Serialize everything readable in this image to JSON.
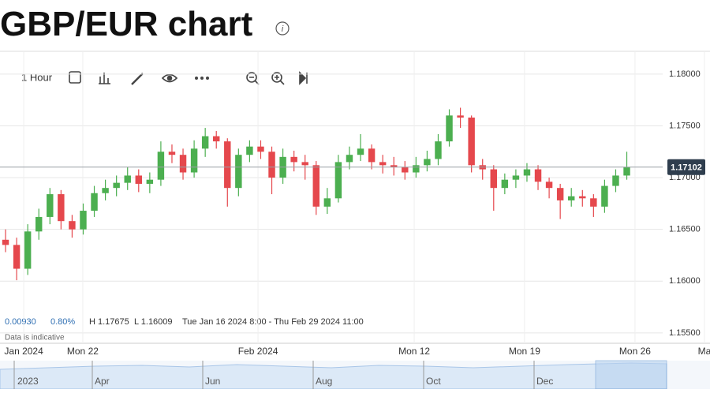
{
  "chart_data": {
    "type": "candlestick",
    "title": "GBP/EUR chart",
    "interval": "1 Hour",
    "stats": {
      "change": "0.00930",
      "change_pct": "0.80%",
      "high": "H 1.17675",
      "low": "L 1.16009",
      "range": "Tue Jan 16 2024 8:00 - Thu Feb 29 2024 11:00"
    },
    "note": "Data is indicative",
    "last_price": 1.17102,
    "up_color": "#4caf50",
    "down_color": "#e5484d",
    "grid": true,
    "xlim": [
      0,
      32
    ],
    "xticks": [
      {
        "value": 1.07,
        "label": "Jan 2024"
      },
      {
        "value": 3.73,
        "label": "Mon 22"
      },
      {
        "value": 11.63,
        "label": "Feb 2024"
      },
      {
        "value": 18.67,
        "label": "Mon 12"
      },
      {
        "value": 23.64,
        "label": "Mon 19"
      },
      {
        "value": 28.62,
        "label": "Mon 26"
      },
      {
        "value": 31.75,
        "label": "Ma"
      }
    ],
    "ylim": [
      1.154,
      1.1822
    ],
    "yticks": [
      {
        "value": 1.155,
        "label": "1.15500"
      },
      {
        "value": 1.16,
        "label": "1.16000"
      },
      {
        "value": 1.165,
        "label": "1.16500"
      },
      {
        "value": 1.17,
        "label": "1.17000"
      },
      {
        "value": 1.175,
        "label": "1.17500"
      },
      {
        "value": 1.18,
        "label": "1.18000"
      }
    ],
    "x": [
      0.25,
      0.75,
      1.25,
      1.75,
      2.25,
      2.75,
      3.25,
      3.75,
      4.25,
      4.75,
      5.25,
      5.75,
      6.25,
      6.75,
      7.25,
      7.75,
      8.25,
      8.75,
      9.25,
      9.75,
      10.25,
      10.75,
      11.25,
      11.75,
      12.25,
      12.75,
      13.25,
      13.75,
      14.25,
      14.75,
      15.25,
      15.75,
      16.25,
      16.75,
      17.25,
      17.75,
      18.25,
      18.75,
      19.25,
      19.75,
      20.25,
      20.75,
      21.25,
      21.75,
      22.25,
      22.75,
      23.25,
      23.75,
      24.25,
      24.75,
      25.25,
      25.75,
      26.25,
      26.75,
      27.25,
      27.75,
      28.25
    ],
    "open": [
      1.164,
      1.1635,
      1.1612,
      1.1648,
      1.1662,
      1.1684,
      1.1658,
      1.165,
      1.1668,
      1.1685,
      1.169,
      1.1695,
      1.1702,
      1.1694,
      1.1698,
      1.1725,
      1.1722,
      1.1705,
      1.1728,
      1.174,
      1.1735,
      1.169,
      1.1722,
      1.173,
      1.1725,
      1.17,
      1.172,
      1.1715,
      1.1712,
      1.1672,
      1.168,
      1.1715,
      1.1722,
      1.1728,
      1.1715,
      1.1712,
      1.171,
      1.1705,
      1.1712,
      1.1718,
      1.1735,
      1.176,
      1.1758,
      1.1712,
      1.1708,
      1.169,
      1.1698,
      1.1702,
      1.1708,
      1.1696,
      1.169,
      1.1678,
      1.1682,
      1.168,
      1.1672,
      1.1692,
      1.1702
    ],
    "high": [
      1.165,
      1.1642,
      1.1655,
      1.167,
      1.169,
      1.1688,
      1.1664,
      1.1675,
      1.1692,
      1.1698,
      1.1702,
      1.171,
      1.1708,
      1.1705,
      1.1735,
      1.1732,
      1.1728,
      1.1736,
      1.1748,
      1.1745,
      1.1738,
      1.1728,
      1.1736,
      1.1736,
      1.173,
      1.1728,
      1.1726,
      1.1722,
      1.1716,
      1.169,
      1.1722,
      1.173,
      1.1742,
      1.1732,
      1.1722,
      1.172,
      1.1716,
      1.172,
      1.1726,
      1.1742,
      1.1766,
      1.17675,
      1.176,
      1.1718,
      1.1712,
      1.1704,
      1.1708,
      1.1714,
      1.1712,
      1.17,
      1.1694,
      1.169,
      1.1688,
      1.1684,
      1.1698,
      1.1708,
      1.1725
    ],
    "low": [
      1.1628,
      1.16009,
      1.1606,
      1.164,
      1.1655,
      1.165,
      1.1642,
      1.1645,
      1.1662,
      1.1678,
      1.1682,
      1.1688,
      1.1686,
      1.1685,
      1.1692,
      1.1714,
      1.1698,
      1.17,
      1.172,
      1.1728,
      1.1672,
      1.1682,
      1.1715,
      1.1718,
      1.1684,
      1.1694,
      1.1706,
      1.1698,
      1.1664,
      1.1665,
      1.1676,
      1.1708,
      1.1716,
      1.1708,
      1.1704,
      1.1702,
      1.1698,
      1.17,
      1.1706,
      1.1712,
      1.173,
      1.1748,
      1.1705,
      1.1698,
      1.1668,
      1.1684,
      1.169,
      1.1696,
      1.1688,
      1.168,
      1.166,
      1.1672,
      1.1672,
      1.1662,
      1.1666,
      1.1686,
      1.1698
    ],
    "close": [
      1.1635,
      1.1612,
      1.1648,
      1.1662,
      1.1684,
      1.1658,
      1.165,
      1.1668,
      1.1685,
      1.169,
      1.1695,
      1.1702,
      1.1694,
      1.1698,
      1.1725,
      1.1722,
      1.1705,
      1.1728,
      1.174,
      1.1735,
      1.169,
      1.1722,
      1.173,
      1.1725,
      1.17,
      1.172,
      1.1715,
      1.1712,
      1.1672,
      1.168,
      1.1715,
      1.1722,
      1.1728,
      1.1715,
      1.1712,
      1.171,
      1.1705,
      1.1712,
      1.1718,
      1.1735,
      1.176,
      1.1758,
      1.1712,
      1.1708,
      1.169,
      1.1698,
      1.1702,
      1.1708,
      1.1696,
      1.169,
      1.1678,
      1.1682,
      1.168,
      1.1672,
      1.1692,
      1.1702,
      1.17102
    ],
    "navigator": {
      "labels": [
        "2023",
        "Apr",
        "Jun",
        "Aug",
        "Oct",
        "Dec"
      ]
    }
  }
}
